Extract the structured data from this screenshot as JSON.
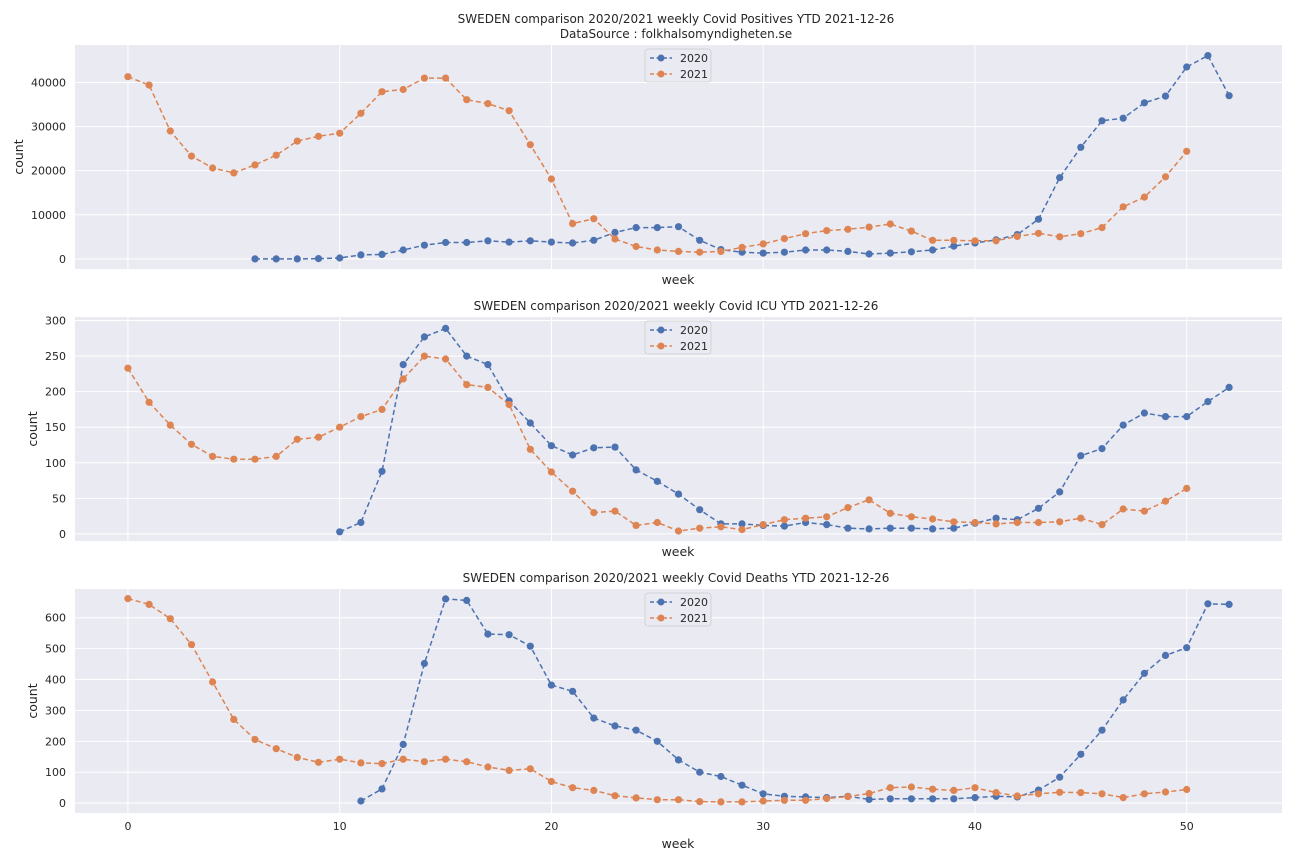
{
  "chart_data": [
    {
      "type": "line",
      "title": "SWEDEN comparison 2020/2021 weekly Covid Positives YTD 2021-12-26",
      "subtitle": "DataSource : folkhalsomyndigheten.se",
      "xlabel": "week",
      "ylabel": "count",
      "xlim": [
        -2.5,
        54.5
      ],
      "ylim": [
        -2300,
        48500
      ],
      "xticks": [
        0,
        10,
        20,
        30,
        40,
        50
      ],
      "yticks": [
        0,
        10000,
        20000,
        30000,
        40000
      ],
      "ytick_labels": [
        "0",
        "10000",
        "20000",
        "30000",
        "40000"
      ],
      "show_xtick_labels": false,
      "grid": true,
      "legend_position": "top-center",
      "series": [
        {
          "name": "2020",
          "color": "#4c72b0",
          "x": [
            6,
            7,
            8,
            9,
            10,
            11,
            12,
            13,
            14,
            15,
            16,
            17,
            18,
            19,
            20,
            21,
            22,
            23,
            24,
            25,
            26,
            27,
            28,
            29,
            30,
            31,
            32,
            33,
            34,
            35,
            36,
            37,
            38,
            39,
            40,
            41,
            42,
            43,
            44,
            45,
            46,
            47,
            48,
            49,
            50,
            51,
            52
          ],
          "values": [
            0,
            0,
            0,
            50,
            200,
            900,
            1000,
            2000,
            3100,
            3700,
            3700,
            4100,
            3800,
            4100,
            3800,
            3600,
            4200,
            6000,
            7100,
            7100,
            7300,
            4200,
            2100,
            1500,
            1300,
            1500,
            2000,
            2000,
            1700,
            1100,
            1300,
            1600,
            2000,
            2900,
            3600,
            4300,
            5500,
            9000,
            18400,
            25300,
            31300,
            31900,
            35400,
            36900,
            43500,
            46100,
            37000
          ]
        },
        {
          "name": "2021",
          "color": "#dd8452",
          "x": [
            0,
            1,
            2,
            3,
            4,
            5,
            6,
            7,
            8,
            9,
            10,
            11,
            12,
            13,
            14,
            15,
            16,
            17,
            18,
            19,
            20,
            21,
            22,
            23,
            24,
            25,
            26,
            27,
            28,
            29,
            30,
            31,
            32,
            33,
            34,
            35,
            36,
            37,
            38,
            39,
            40,
            41,
            42,
            43,
            44,
            45,
            46,
            47,
            48,
            49,
            50
          ],
          "values": [
            41300,
            39400,
            29000,
            23300,
            20600,
            19500,
            21300,
            23500,
            26700,
            27800,
            28500,
            33000,
            37900,
            38400,
            41000,
            41000,
            36100,
            35200,
            33600,
            25900,
            18100,
            8000,
            9100,
            4500,
            2800,
            2000,
            1700,
            1500,
            1700,
            2600,
            3400,
            4600,
            5700,
            6400,
            6700,
            7200,
            7900,
            6300,
            4200,
            4200,
            4100,
            4100,
            5100,
            5800,
            5000,
            5700,
            7100,
            11800,
            14000,
            18600,
            24400
          ]
        }
      ]
    },
    {
      "type": "line",
      "title": "SWEDEN comparison 2020/2021 weekly Covid ICU YTD 2021-12-26",
      "xlabel": "week",
      "ylabel": "count",
      "xlim": [
        -2.5,
        54.5
      ],
      "ylim": [
        -10,
        305
      ],
      "xticks": [
        0,
        10,
        20,
        30,
        40,
        50
      ],
      "yticks": [
        0,
        50,
        100,
        150,
        200,
        250,
        300
      ],
      "ytick_labels": [
        "0",
        "50",
        "100",
        "150",
        "200",
        "250",
        "300"
      ],
      "show_xtick_labels": false,
      "grid": true,
      "legend_position": "top-center",
      "series": [
        {
          "name": "2020",
          "color": "#4c72b0",
          "x": [
            10,
            11,
            12,
            13,
            14,
            15,
            16,
            17,
            18,
            19,
            20,
            21,
            22,
            23,
            24,
            25,
            26,
            27,
            28,
            29,
            30,
            31,
            32,
            33,
            34,
            35,
            36,
            37,
            38,
            39,
            40,
            41,
            42,
            43,
            44,
            45,
            46,
            47,
            48,
            49,
            50,
            51,
            52
          ],
          "values": [
            3,
            16,
            88,
            238,
            277,
            289,
            250,
            238,
            187,
            156,
            124,
            111,
            121,
            122,
            90,
            74,
            56,
            34,
            14,
            14,
            12,
            11,
            16,
            13,
            8,
            7,
            8,
            8,
            7,
            8,
            15,
            22,
            20,
            36,
            59,
            110,
            120,
            153,
            170,
            165,
            165,
            186,
            206
          ]
        },
        {
          "name": "2021",
          "color": "#dd8452",
          "x": [
            0,
            1,
            2,
            3,
            4,
            5,
            6,
            7,
            8,
            9,
            10,
            11,
            12,
            13,
            14,
            15,
            16,
            17,
            18,
            19,
            20,
            21,
            22,
            23,
            24,
            25,
            26,
            27,
            28,
            29,
            30,
            31,
            32,
            33,
            34,
            35,
            36,
            37,
            38,
            39,
            40,
            41,
            42,
            43,
            44,
            45,
            46,
            47,
            48,
            49,
            50
          ],
          "values": [
            233,
            185,
            153,
            126,
            109,
            105,
            105,
            109,
            133,
            136,
            150,
            165,
            175,
            218,
            250,
            246,
            210,
            206,
            182,
            119,
            87,
            60,
            30,
            32,
            12,
            16,
            4,
            8,
            10,
            6,
            13,
            20,
            22,
            24,
            37,
            48,
            29,
            24,
            21,
            17,
            16,
            14,
            16,
            16,
            17,
            22,
            13,
            35,
            32,
            46,
            64
          ]
        }
      ]
    },
    {
      "type": "line",
      "title": "SWEDEN comparison 2020/2021 weekly Covid Deaths YTD 2021-12-26",
      "xlabel": "week",
      "ylabel": "count",
      "xlim": [
        -2.5,
        54.5
      ],
      "ylim": [
        -32,
        693
      ],
      "xticks": [
        0,
        10,
        20,
        30,
        40,
        50
      ],
      "xtick_labels": [
        "0",
        "10",
        "20",
        "30",
        "40",
        "50"
      ],
      "yticks": [
        0,
        100,
        200,
        300,
        400,
        500,
        600
      ],
      "ytick_labels": [
        "0",
        "100",
        "200",
        "300",
        "400",
        "500",
        "600"
      ],
      "show_xtick_labels": true,
      "grid": true,
      "legend_position": "top-center",
      "series": [
        {
          "name": "2020",
          "color": "#4c72b0",
          "x": [
            11,
            12,
            13,
            14,
            15,
            16,
            17,
            18,
            19,
            20,
            21,
            22,
            23,
            24,
            25,
            26,
            27,
            28,
            29,
            30,
            31,
            32,
            33,
            34,
            35,
            36,
            37,
            38,
            39,
            40,
            41,
            42,
            43,
            44,
            45,
            46,
            47,
            48,
            49,
            50,
            51,
            52
          ],
          "values": [
            7,
            46,
            190,
            452,
            661,
            656,
            547,
            545,
            508,
            382,
            362,
            275,
            250,
            236,
            200,
            140,
            100,
            86,
            58,
            30,
            22,
            20,
            18,
            22,
            12,
            14,
            14,
            14,
            14,
            18,
            22,
            20,
            42,
            84,
            158,
            236,
            334,
            420,
            478,
            503,
            645,
            643
          ]
        },
        {
          "name": "2021",
          "color": "#dd8452",
          "x": [
            0,
            1,
            2,
            3,
            4,
            5,
            6,
            7,
            8,
            9,
            10,
            11,
            12,
            13,
            14,
            15,
            16,
            17,
            18,
            19,
            20,
            21,
            22,
            23,
            24,
            25,
            26,
            27,
            28,
            29,
            30,
            31,
            32,
            33,
            34,
            35,
            36,
            37,
            38,
            39,
            40,
            41,
            42,
            43,
            44,
            45,
            46,
            47,
            48,
            49,
            50
          ],
          "values": [
            662,
            643,
            597,
            513,
            392,
            271,
            206,
            176,
            148,
            132,
            142,
            130,
            128,
            142,
            134,
            142,
            134,
            117,
            106,
            111,
            70,
            50,
            41,
            24,
            17,
            11,
            11,
            5,
            4,
            4,
            7,
            9,
            9,
            15,
            21,
            31,
            50,
            52,
            45,
            41,
            50,
            34,
            23,
            30,
            35,
            34,
            30,
            18,
            30,
            36,
            44
          ]
        }
      ]
    }
  ]
}
